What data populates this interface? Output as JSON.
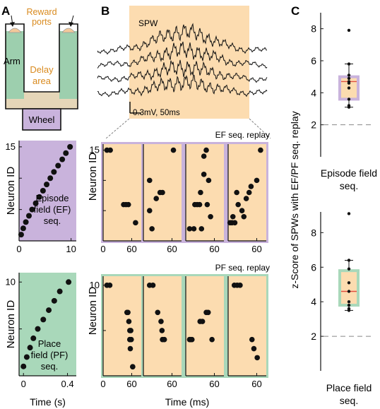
{
  "panels": {
    "a": "A",
    "b": "B",
    "c": "C"
  },
  "maze": {
    "reward_line1": "Reward",
    "reward_line2": "ports",
    "arm": "Arm",
    "delay_line1": "Delay",
    "delay_line2": "area",
    "wheel": "Wheel"
  },
  "spw": {
    "label": "SPW",
    "scale": "0.3mV, 50ms"
  },
  "colors": {
    "episode_field": "#c9b3dc",
    "place_field": "#a9d8ba",
    "swr_window": "#fcdcb0",
    "maze_green": "#9dcfae",
    "maze_tan": "#e5d6b8",
    "reward_text": "#d98a1e",
    "median_line": "#e05040"
  },
  "chart_data": [
    {
      "id": "ef-sequence",
      "type": "scatter",
      "text": [
        "Episode",
        "field (EF)",
        "seq."
      ],
      "ylabel": "Neuron ID",
      "xticks": [
        "0",
        "10"
      ],
      "yticks": [
        "5",
        "10",
        "15"
      ],
      "xlim": [
        0,
        11
      ],
      "ylim": [
        0,
        16
      ],
      "x": [
        0.4,
        0.8,
        1.3,
        1.9,
        2.5,
        3.2,
        3.9,
        4.6,
        5.3,
        6.0,
        6.7,
        7.5,
        8.3,
        9.0,
        9.8
      ],
      "y": [
        1,
        2,
        3,
        4,
        5,
        6,
        7,
        8,
        9,
        10,
        11,
        12,
        13,
        14,
        15
      ]
    },
    {
      "id": "pf-sequence",
      "type": "scatter",
      "text": [
        "Place",
        "field (PF)",
        "seq."
      ],
      "ylabel": "Neuron ID",
      "xlabel": "Time (s)",
      "xticks": [
        "0",
        "0.4"
      ],
      "yticks": [
        "5",
        "10"
      ],
      "xlim": [
        -0.04,
        0.48
      ],
      "ylim": [
        0,
        11
      ],
      "x": [
        0.0,
        0.03,
        0.06,
        0.09,
        0.13,
        0.18,
        0.23,
        0.28,
        0.33,
        0.41
      ],
      "y": [
        1,
        2,
        3,
        4,
        5,
        6,
        7,
        8,
        9,
        10
      ]
    },
    {
      "id": "ef-replay",
      "type": "scatter",
      "title": "EF seq. replay",
      "ylabel": "Neuron ID",
      "yticks": [
        "5",
        "10",
        "15"
      ],
      "xticks_first": [
        "0",
        "60"
      ],
      "xtick_each": "60",
      "ylim": [
        0,
        16
      ],
      "xlim": [
        0,
        80
      ],
      "events": [
        {
          "x": [
            8,
            15,
            43,
            48,
            53,
            68
          ],
          "y": [
            15,
            15,
            6,
            6,
            6,
            3
          ]
        },
        {
          "x": [
            13,
            18,
            27,
            35,
            40,
            13,
            63
          ],
          "y": [
            10,
            2,
            7,
            8,
            8,
            5,
            15
          ]
        },
        {
          "x": [
            8,
            17,
            19,
            24,
            29,
            31,
            33,
            38,
            38,
            43,
            45,
            48,
            52
          ],
          "y": [
            2,
            2,
            6,
            6,
            6,
            8,
            2,
            11,
            14,
            15,
            6,
            10,
            4
          ]
        },
        {
          "x": [
            4,
            8,
            10,
            14,
            18,
            21,
            29,
            33,
            38,
            44,
            48,
            60,
            68
          ],
          "y": [
            3,
            3,
            4,
            3,
            8,
            6,
            5,
            4,
            7,
            8,
            9,
            10,
            15
          ]
        }
      ]
    },
    {
      "id": "pf-replay",
      "type": "scatter",
      "title": "PF seq. replay",
      "xlabel": "Time (ms)",
      "ylabel": "Neuron ID",
      "yticks": [
        "5",
        "10"
      ],
      "xticks_first": [
        "0",
        "60"
      ],
      "xtick_each": "60",
      "ylim": [
        0,
        11
      ],
      "xlim": [
        0,
        80
      ],
      "events": [
        {
          "x": [
            8,
            14,
            50,
            52,
            54,
            56,
            56,
            56,
            57,
            62,
            62,
            58,
            59
          ],
          "y": [
            10,
            10,
            7,
            7,
            6,
            5,
            4,
            4,
            3,
            1,
            1,
            5,
            4
          ]
        },
        {
          "x": [
            13,
            20,
            30,
            37,
            39,
            40,
            44
          ],
          "y": [
            10,
            10,
            7,
            6,
            5,
            4,
            4
          ]
        },
        {
          "x": [
            8,
            10,
            13,
            30,
            35,
            43,
            47,
            55
          ],
          "y": [
            4,
            4,
            4,
            6,
            6,
            7,
            7,
            4
          ]
        },
        {
          "x": [
            13,
            19,
            25,
            50,
            54,
            61
          ],
          "y": [
            10,
            10,
            10,
            4,
            3,
            2
          ]
        }
      ]
    },
    {
      "id": "ef-zscore",
      "type": "box",
      "xlabel": [
        "Episode field",
        "seq."
      ],
      "yticks": [
        "2",
        "4",
        "6",
        "8"
      ],
      "ylim": [
        0,
        9
      ],
      "median": 4.7,
      "q1": 3.6,
      "q3": 5.0,
      "whisker_low": 3.1,
      "whisker_high": 5.8,
      "points": [
        7.9,
        5.8,
        5.1,
        4.9,
        4.7,
        4.6,
        4.3,
        3.6,
        3.2,
        3.1
      ],
      "reference": 2
    },
    {
      "id": "pf-zscore",
      "type": "box",
      "xlabel": [
        "Place field",
        "seq."
      ],
      "ylabel": "z-Score of SPWs with EF/PF seq. replay",
      "yticks": [
        "2",
        "4",
        "6",
        "8"
      ],
      "ylim": [
        0,
        9.2
      ],
      "median": 4.6,
      "q1": 3.8,
      "q3": 5.8,
      "whisker_low": 3.5,
      "whisker_high": 6.4,
      "points": [
        9.1,
        6.4,
        5.9,
        5.1,
        4.6,
        4.0,
        3.8,
        3.6,
        3.5
      ],
      "reference": 2
    }
  ]
}
